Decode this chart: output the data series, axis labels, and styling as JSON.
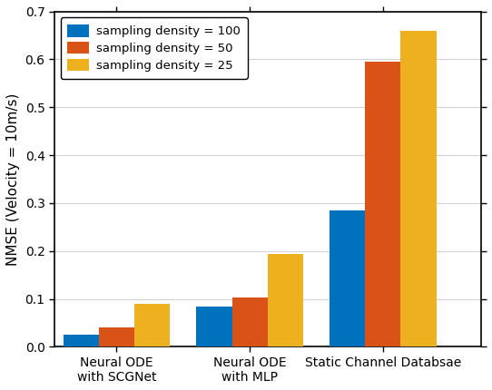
{
  "categories": [
    "Neural ODE\nwith SCGNet",
    "Neural ODE\nwith MLP",
    "Static Channel Databsae"
  ],
  "series": [
    {
      "label": "sampling density = 100",
      "color": "#0072BD",
      "values": [
        0.025,
        0.085,
        0.285
      ]
    },
    {
      "label": "sampling density = 50",
      "color": "#D95319",
      "values": [
        0.04,
        0.103,
        0.595
      ]
    },
    {
      "label": "sampling density = 25",
      "color": "#EDB120",
      "values": [
        0.09,
        0.193,
        0.66
      ]
    }
  ],
  "ylabel": "NMSE (Velocity = 10m/s)",
  "ylim": [
    0,
    0.7
  ],
  "yticks": [
    0.0,
    0.1,
    0.2,
    0.3,
    0.4,
    0.5,
    0.6,
    0.7
  ],
  "bar_width": 0.2,
  "group_positions": [
    0.25,
    1.0,
    1.75
  ],
  "background_color": "#ffffff",
  "grid_color": "#d3d3d3",
  "legend_fontsize": 9.5,
  "axis_fontsize": 11,
  "tick_fontsize": 10,
  "xlim": [
    -0.1,
    2.3
  ]
}
